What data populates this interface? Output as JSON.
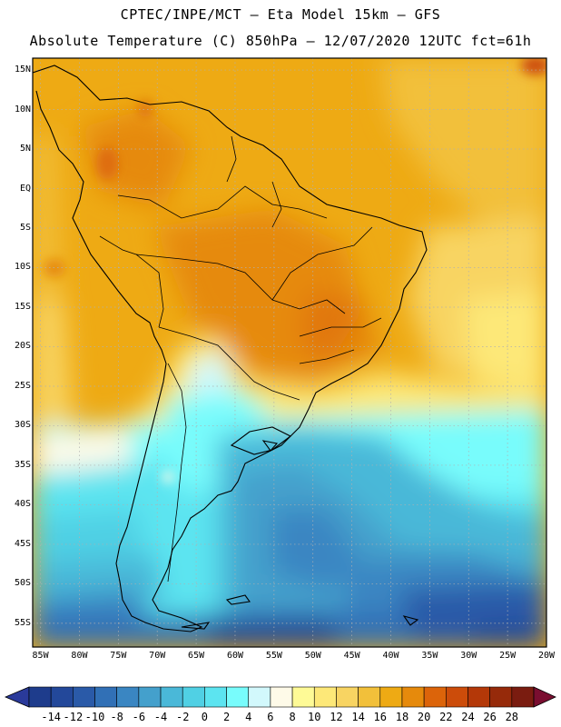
{
  "header": {
    "title_line1": "CPTEC/INPE/MCT –  Eta Model 15km – GFS",
    "title_line2": "Absolute Temperature (C) 850hPa – 12/07/2020 12UTC fct=61h"
  },
  "map": {
    "variable": "Absolute Temperature (C) 850hPa",
    "model": "Eta Model 15km",
    "lat_range": [
      -58,
      16.5
    ],
    "lon_range": [
      -86,
      -20
    ],
    "lat_labels": [
      {
        "value": 15,
        "text": "15N"
      },
      {
        "value": 10,
        "text": "10N"
      },
      {
        "value": 5,
        "text": "5N"
      },
      {
        "value": 0,
        "text": "EQ"
      },
      {
        "value": -5,
        "text": "5S"
      },
      {
        "value": -10,
        "text": "10S"
      },
      {
        "value": -15,
        "text": "15S"
      },
      {
        "value": -20,
        "text": "20S"
      },
      {
        "value": -25,
        "text": "25S"
      },
      {
        "value": -30,
        "text": "30S"
      },
      {
        "value": -35,
        "text": "35S"
      },
      {
        "value": -40,
        "text": "40S"
      },
      {
        "value": -45,
        "text": "45S"
      },
      {
        "value": -50,
        "text": "50S"
      },
      {
        "value": -55,
        "text": "55S"
      }
    ],
    "lon_labels": [
      {
        "value": -85,
        "text": "85W"
      },
      {
        "value": -80,
        "text": "80W"
      },
      {
        "value": -75,
        "text": "75W"
      },
      {
        "value": -70,
        "text": "70W"
      },
      {
        "value": -65,
        "text": "65W"
      },
      {
        "value": -60,
        "text": "60W"
      },
      {
        "value": -55,
        "text": "55W"
      },
      {
        "value": -50,
        "text": "50W"
      },
      {
        "value": -45,
        "text": "45W"
      },
      {
        "value": -40,
        "text": "40W"
      },
      {
        "value": -35,
        "text": "35W"
      },
      {
        "value": -30,
        "text": "30W"
      },
      {
        "value": -25,
        "text": "25W"
      },
      {
        "value": -20,
        "text": "20W"
      }
    ]
  },
  "colorbar": {
    "labels": [
      "-14",
      "-12",
      "-10",
      "-8",
      "-6",
      "-4",
      "-2",
      "0",
      "2",
      "4",
      "6",
      "8",
      "10",
      "12",
      "14",
      "16",
      "18",
      "20",
      "22",
      "24",
      "26",
      "28"
    ],
    "colors": [
      "#1e3c8c",
      "#23489a",
      "#2a5aa8",
      "#3170b6",
      "#3a86c2",
      "#44a0cc",
      "#4ab8d8",
      "#50d0e4",
      "#5ce4f0",
      "#78fcfc",
      "#d2f8fc",
      "#fefae8",
      "#fefa96",
      "#fde878",
      "#f8d462",
      "#f2c03a",
      "#eeaa14",
      "#e68a0c",
      "#dc640a",
      "#cc4c0a",
      "#b43808",
      "#962a0a",
      "#7a1c10"
    ],
    "arrow_low_color": "#2a3a9a",
    "arrow_high_color": "#7a0e30"
  }
}
